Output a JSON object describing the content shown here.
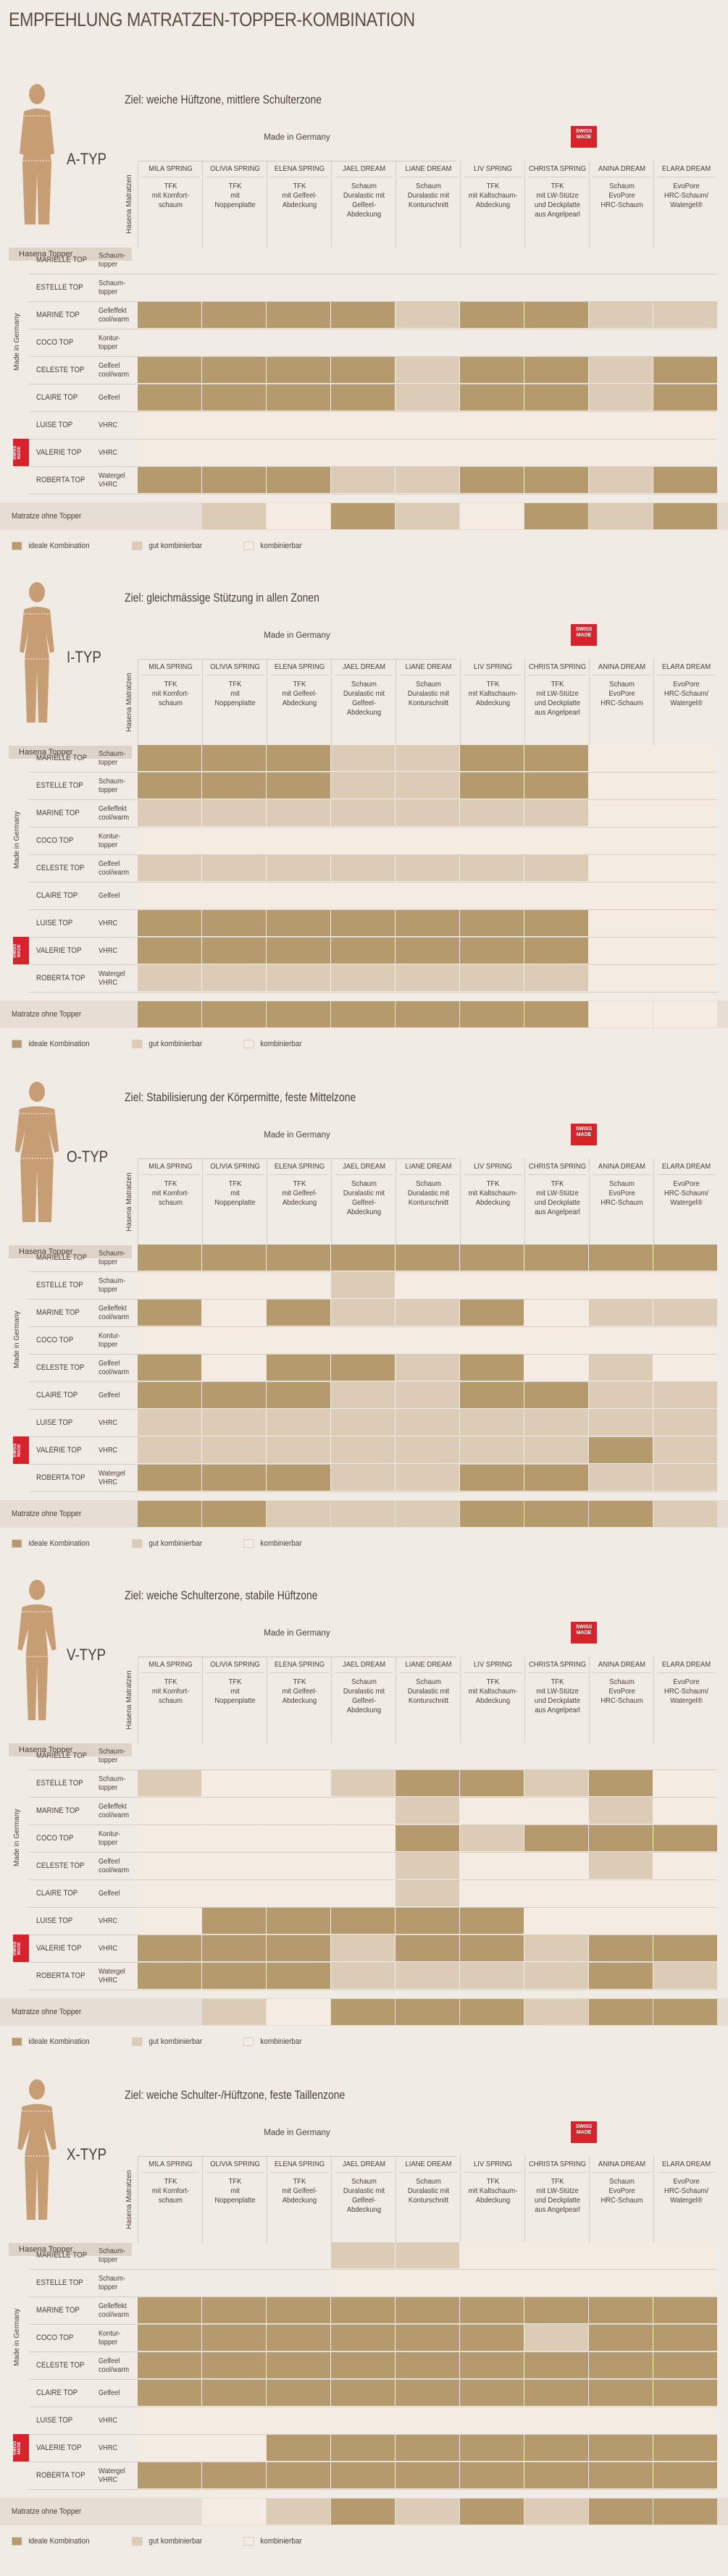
{
  "title": "EMPFEHLUNG MATRATZEN-TOPPER-KOMBINATION",
  "made_in_germany": "Made in Germany",
  "swiss_made": "SWISS MADE",
  "hasena_matratzen": "Hasena Matratzen",
  "hasena_topper": "Hasena Topper",
  "no_topper": "Matratze ohne Topper",
  "legend": {
    "ideal": "ideale Kombination",
    "good": "gut kombinierbar",
    "ok": "kombinierbar"
  },
  "mattresses": [
    {
      "name": "MILA SPRING",
      "desc": "TFK\nmit Komfort-\nschaum"
    },
    {
      "name": "OLIVIA SPRING",
      "desc": "TFK\nmit\nNoppenplatte"
    },
    {
      "name": "ELENA SPRING",
      "desc": "TFK\nmit Gelfeel-\nAbdeckung"
    },
    {
      "name": "JAEL DREAM",
      "desc": "Schaum\nDuralastic mit\nGelfeel-\nAbdeckung"
    },
    {
      "name": "LIANE DREAM",
      "desc": "Schaum\nDuralastic mit\nKonturschnitt"
    },
    {
      "name": "LIV SPRING",
      "desc": "TFK\nmit Kaltschaum-\nAbdeckung"
    },
    {
      "name": "CHRISTA SPRING",
      "desc": "TFK\nmit LW-Stütze\nund Deckplatte\naus Angelpearl"
    },
    {
      "name": "ANINA DREAM",
      "desc": "Schaum\nEvoPore\nHRC-Schaum"
    },
    {
      "name": "ELARA DREAM",
      "desc": "EvoPore\nHRC-Schaum/\nWatergel®"
    }
  ],
  "toppers": [
    {
      "name": "MARIELLE TOP",
      "desc": "Schaum-\ntopper"
    },
    {
      "name": "ESTELLE TOP",
      "desc": "Schaum-\ntopper"
    },
    {
      "name": "MARINE TOP",
      "desc": "Gelleffekt\ncool/warm"
    },
    {
      "name": "COCO TOP",
      "desc": "Kontur-\ntopper"
    },
    {
      "name": "CELESTE TOP",
      "desc": "Gelfeel\ncool/warm"
    },
    {
      "name": "CLAIRE TOP",
      "desc": "Gelfeel"
    },
    {
      "name": "LUISE TOP",
      "desc": "VHRC"
    },
    {
      "name": "VALERIE TOP",
      "desc": "VHRC"
    },
    {
      "name": "ROBERTA TOP",
      "desc": "Watergel\nVHRC"
    }
  ],
  "sections": [
    {
      "type": "A-TYP",
      "goal": "Ziel: weiche Hüftzone, mittlere Schulterzone",
      "matrix": [
        [
          0,
          0,
          0,
          0,
          0,
          0,
          0,
          0,
          0
        ],
        [
          0,
          0,
          0,
          0,
          0,
          0,
          0,
          0,
          0
        ],
        [
          3,
          3,
          3,
          3,
          2,
          3,
          3,
          2,
          2
        ],
        [
          0,
          0,
          0,
          0,
          0,
          0,
          0,
          0,
          0
        ],
        [
          3,
          3,
          3,
          3,
          2,
          3,
          3,
          2,
          3
        ],
        [
          3,
          3,
          3,
          3,
          2,
          3,
          3,
          2,
          3
        ],
        [
          1,
          1,
          1,
          1,
          1,
          1,
          1,
          1,
          1
        ],
        [
          1,
          1,
          1,
          1,
          1,
          1,
          1,
          1,
          1
        ],
        [
          3,
          3,
          3,
          2,
          2,
          3,
          3,
          2,
          3
        ]
      ],
      "no_topper": [
        0,
        2,
        1,
        3,
        2,
        1,
        3,
        2,
        3
      ]
    },
    {
      "type": "I-TYP",
      "goal": "Ziel: gleichmässige Stützung in allen Zonen",
      "matrix": [
        [
          3,
          3,
          3,
          2,
          2,
          3,
          3,
          1,
          1
        ],
        [
          3,
          3,
          3,
          2,
          2,
          3,
          3,
          1,
          1
        ],
        [
          2,
          2,
          2,
          2,
          2,
          2,
          2,
          1,
          1
        ],
        [
          1,
          1,
          1,
          1,
          1,
          1,
          1,
          1,
          1
        ],
        [
          2,
          2,
          2,
          2,
          2,
          2,
          2,
          1,
          1
        ],
        [
          1,
          1,
          1,
          1,
          1,
          1,
          1,
          1,
          1
        ],
        [
          3,
          3,
          3,
          3,
          3,
          3,
          3,
          1,
          1
        ],
        [
          3,
          3,
          3,
          3,
          3,
          3,
          3,
          1,
          1
        ],
        [
          2,
          2,
          2,
          2,
          2,
          2,
          2,
          1,
          1
        ]
      ],
      "no_topper": [
        3,
        3,
        3,
        3,
        3,
        3,
        3,
        1,
        1
      ]
    },
    {
      "type": "O-TYP",
      "goal": "Ziel: Stabilisierung der Körpermitte, feste Mittelzone",
      "matrix": [
        [
          3,
          3,
          3,
          3,
          3,
          3,
          3,
          3,
          3
        ],
        [
          1,
          1,
          1,
          2,
          1,
          1,
          1,
          1,
          1
        ],
        [
          3,
          1,
          3,
          2,
          2,
          3,
          1,
          2,
          2
        ],
        [
          1,
          1,
          1,
          1,
          1,
          1,
          1,
          1,
          1
        ],
        [
          3,
          1,
          3,
          3,
          2,
          3,
          1,
          2,
          1
        ],
        [
          3,
          3,
          3,
          2,
          2,
          3,
          3,
          2,
          2
        ],
        [
          2,
          2,
          2,
          2,
          2,
          2,
          2,
          2,
          2
        ],
        [
          2,
          2,
          2,
          2,
          2,
          2,
          2,
          3,
          2
        ],
        [
          3,
          3,
          3,
          2,
          2,
          3,
          3,
          2,
          2
        ]
      ],
      "no_topper": [
        3,
        3,
        2,
        2,
        2,
        3,
        3,
        3,
        2
      ]
    },
    {
      "type": "V-TYP",
      "goal": "Ziel: weiche Schulterzone, stabile Hüftzone",
      "matrix": [
        [
          0,
          0,
          0,
          0,
          0,
          0,
          0,
          0,
          0
        ],
        [
          2,
          1,
          1,
          2,
          3,
          3,
          2,
          3,
          1
        ],
        [
          1,
          1,
          1,
          1,
          2,
          1,
          1,
          2,
          1
        ],
        [
          1,
          1,
          1,
          1,
          3,
          2,
          3,
          3,
          3
        ],
        [
          1,
          1,
          1,
          1,
          2,
          1,
          1,
          2,
          1
        ],
        [
          1,
          1,
          1,
          1,
          2,
          1,
          1,
          1,
          1
        ],
        [
          1,
          3,
          3,
          3,
          3,
          3,
          1,
          1,
          1
        ],
        [
          3,
          3,
          3,
          2,
          3,
          3,
          2,
          3,
          3
        ],
        [
          3,
          3,
          3,
          2,
          2,
          2,
          2,
          3,
          2
        ]
      ],
      "no_topper": [
        0,
        2,
        1,
        3,
        3,
        3,
        2,
        3,
        3
      ]
    },
    {
      "type": "X-TYP",
      "goal": "Ziel: weiche Schulter-/Hüftzone, feste Taillenzone",
      "matrix": [
        [
          0,
          0,
          0,
          2,
          2,
          1,
          1,
          1,
          1
        ],
        [
          0,
          0,
          0,
          1,
          1,
          1,
          1,
          1,
          1
        ],
        [
          3,
          3,
          3,
          3,
          3,
          3,
          3,
          3,
          3
        ],
        [
          3,
          3,
          3,
          3,
          3,
          3,
          2,
          3,
          3
        ],
        [
          3,
          3,
          3,
          3,
          3,
          3,
          3,
          3,
          3
        ],
        [
          3,
          3,
          3,
          3,
          3,
          3,
          3,
          3,
          3
        ],
        [
          1,
          1,
          1,
          1,
          1,
          1,
          1,
          1,
          1
        ],
        [
          1,
          1,
          3,
          3,
          3,
          3,
          3,
          3,
          3
        ],
        [
          3,
          3,
          3,
          3,
          3,
          3,
          3,
          3,
          3
        ]
      ],
      "no_topper": [
        0,
        1,
        2,
        3,
        2,
        3,
        2,
        3,
        3
      ]
    }
  ],
  "colors": {
    "ideal": "#b59a6e",
    "good": "#dccbb5",
    "ok": "#f4ece3",
    "background": "#f1ebe5",
    "swiss_red": "#d8232a"
  }
}
